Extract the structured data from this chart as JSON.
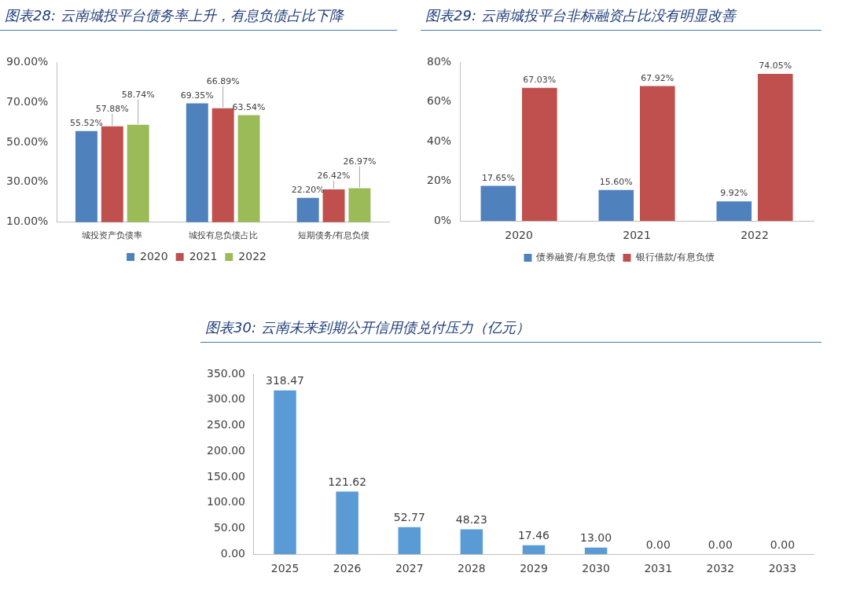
{
  "chart_data": [
    {
      "type": "bar",
      "title": "图表28:  云南城投平台债务率上升，有息负债占比下降",
      "categories": [
        "城投资产负债率",
        "城投有息负债占比",
        "短期债务/有息负债"
      ],
      "series": [
        {
          "name": "2020",
          "color": "#4f81bd",
          "values": [
            55.52,
            69.35,
            22.2
          ],
          "value_labels": [
            "55.52%",
            "69.35%",
            "22.20%"
          ]
        },
        {
          "name": "2021",
          "color": "#c0504d",
          "values": [
            57.88,
            66.89,
            26.42
          ],
          "value_labels": [
            "57.88%",
            "66.89%",
            "26.42%"
          ]
        },
        {
          "name": "2022",
          "color": "#9bbb59",
          "values": [
            58.74,
            63.54,
            26.97
          ],
          "value_labels": [
            "58.74%",
            "63.54%",
            "26.97%"
          ]
        }
      ],
      "ylim": [
        10,
        90
      ],
      "yticks": [
        {
          "value": 10,
          "label": "10.00%"
        },
        {
          "value": 30,
          "label": "30.00%"
        },
        {
          "value": 50,
          "label": "50.00%"
        },
        {
          "value": 70,
          "label": "70.00%"
        },
        {
          "value": 90,
          "label": "90.00%"
        }
      ],
      "legend": "bottom"
    },
    {
      "type": "bar",
      "title": "图表29:  云南城投平台非标融资占比没有明显改善",
      "categories": [
        "2020",
        "2021",
        "2022"
      ],
      "series": [
        {
          "name": "债券融资/有息负债",
          "color": "#4f81bd",
          "values": [
            17.65,
            15.6,
            9.92
          ],
          "value_labels": [
            "17.65%",
            "15.60%",
            "9.92%"
          ]
        },
        {
          "name": "银行借款/有息负债",
          "color": "#c0504d",
          "values": [
            67.03,
            67.92,
            74.05
          ],
          "value_labels": [
            "67.03%",
            "67.92%",
            "74.05%"
          ]
        }
      ],
      "ylim": [
        0,
        80
      ],
      "yticks": [
        {
          "value": 0,
          "label": "0%"
        },
        {
          "value": 20,
          "label": "20%"
        },
        {
          "value": 40,
          "label": "40%"
        },
        {
          "value": 60,
          "label": "60%"
        },
        {
          "value": 80,
          "label": "80%"
        }
      ],
      "legend": "bottom"
    },
    {
      "type": "bar",
      "title": "图表30:  云南未来到期公开信用债兑付压力（亿元）",
      "categories": [
        "2025",
        "2026",
        "2027",
        "2028",
        "2029",
        "2030",
        "2031",
        "2032",
        "2033"
      ],
      "color": "#5b9bd5",
      "values": [
        318.47,
        121.62,
        52.77,
        48.23,
        17.46,
        13.0,
        0,
        0,
        0
      ],
      "value_labels": [
        "318.47",
        "121.62",
        "52.77",
        "48.23",
        "17.46",
        "13.00",
        "0.00",
        "0.00",
        "0.00"
      ],
      "ylim": [
        0,
        350
      ],
      "yticks": [
        {
          "value": 0,
          "label": "0.00"
        },
        {
          "value": 50,
          "label": "50.00"
        },
        {
          "value": 100,
          "label": "100.00"
        },
        {
          "value": 150,
          "label": "150.00"
        },
        {
          "value": 200,
          "label": "200.00"
        },
        {
          "value": 250,
          "label": "250.00"
        },
        {
          "value": 300,
          "label": "300.00"
        },
        {
          "value": 350,
          "label": "350.00"
        }
      ]
    }
  ]
}
